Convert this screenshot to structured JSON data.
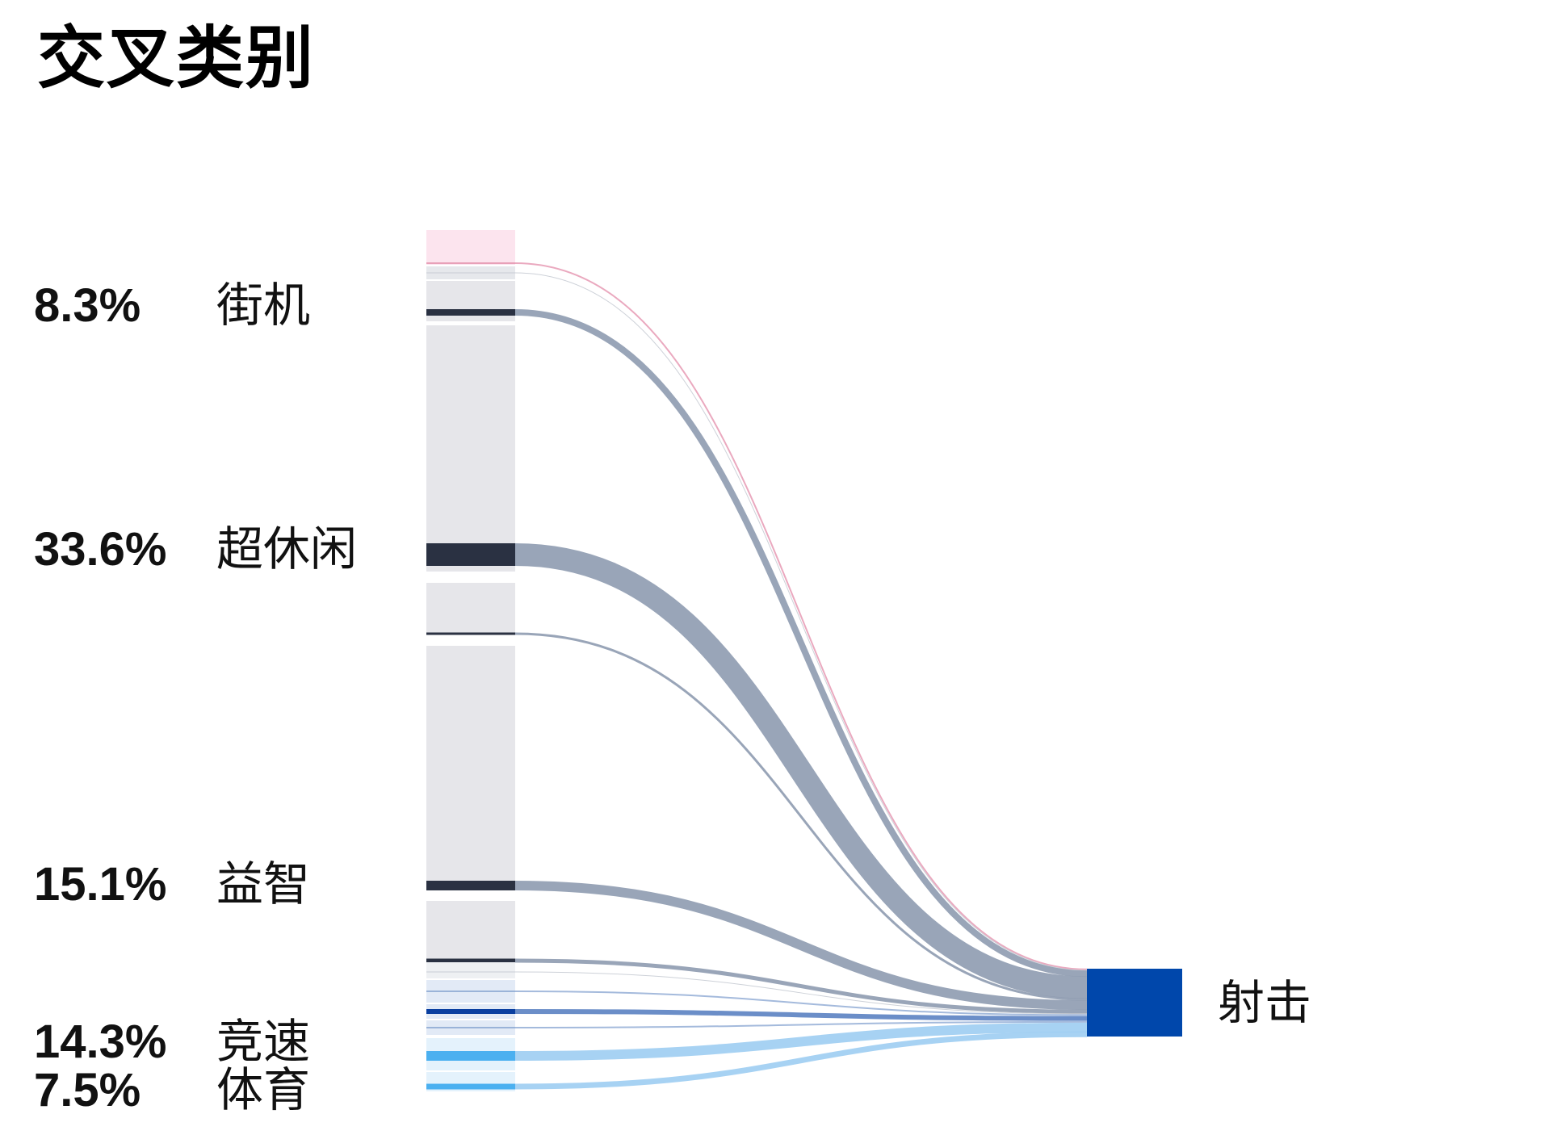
{
  "title": "交叉类别",
  "chart_data": {
    "type": "sankey",
    "title": "交叉类别",
    "target": {
      "name": "射击",
      "color": "#0047AB"
    },
    "labeled_sources": [
      {
        "name": "街机",
        "percent": "8.3%"
      },
      {
        "name": "超休闲",
        "percent": "33.6%"
      },
      {
        "name": "益智",
        "percent": "15.1%"
      },
      {
        "name": "竞速",
        "percent": "14.3%"
      },
      {
        "name": "体育",
        "percent": "7.5%"
      }
    ],
    "flows": [
      {
        "id": "pink",
        "color": "#E8A0B8",
        "node_color": "#FCE4EE",
        "value": 0.2
      },
      {
        "id": "grey1",
        "color": "#C8CCD4",
        "node_color": "#E6E8EC",
        "value": 0.1
      },
      {
        "id": "arcade",
        "color": "#8E9BB0",
        "node_color": "#E6E6EA",
        "bar_color": "#2A3142",
        "value": 1.0
      },
      {
        "id": "hypercasual",
        "color": "#8E9BB0",
        "node_color": "#E6E6EA",
        "bar_color": "#2A3142",
        "value": 3.5
      },
      {
        "id": "dark2",
        "color": "#8E9BB0",
        "node_color": "#E6E6EA",
        "bar_color": "#2A3142",
        "value": 0.3
      },
      {
        "id": "puzzle",
        "color": "#8E9BB0",
        "node_color": "#E6E6EA",
        "bar_color": "#2A3142",
        "value": 1.5
      },
      {
        "id": "dark3",
        "color": "#8E9BB0",
        "node_color": "#E6E6EA",
        "bar_color": "#2A3142",
        "value": 0.6
      },
      {
        "id": "grey2",
        "color": "#C8CCD4",
        "node_color": "#EEF0F3",
        "value": 0.1
      },
      {
        "id": "blue1",
        "color": "#9AB3D8",
        "node_color": "#E2EAF6",
        "value": 0.3
      },
      {
        "id": "racing",
        "color": "#5B82C2",
        "node_color": "#E2EAF6",
        "bar_color": "#0A3FA0",
        "value": 0.8
      },
      {
        "id": "blue2",
        "color": "#9AB3D8",
        "node_color": "#E2EAF6",
        "value": 0.3
      },
      {
        "id": "sports",
        "color": "#9DCDF2",
        "node_color": "#E4F2FC",
        "bar_color": "#4BB0F0",
        "value": 1.5
      },
      {
        "id": "lightblue2",
        "color": "#9DCDF2",
        "node_color": "#E4F2FC",
        "bar_color": "#4BB0F0",
        "value": 0.7
      }
    ]
  }
}
